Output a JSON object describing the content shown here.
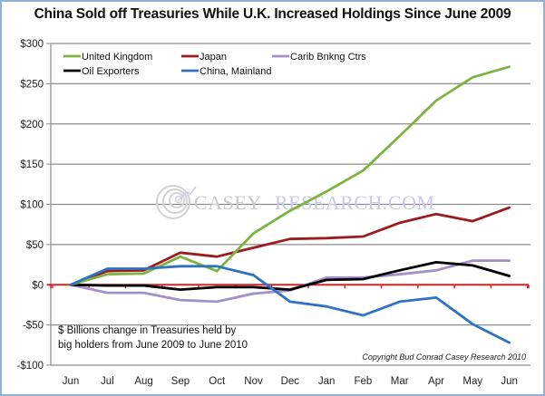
{
  "chart_data": {
    "type": "line",
    "title": "China Sold off Treasuries While U.K. Increased Holdings Since June 2009",
    "xlabel": "",
    "ylabel": "",
    "categories": [
      "Jun",
      "Jul",
      "Aug",
      "Sep",
      "Oct",
      "Nov",
      "Dec",
      "Jan",
      "Feb",
      "Mar",
      "Apr",
      "May",
      "Jun"
    ],
    "y_ticks": [
      300,
      250,
      200,
      150,
      100,
      50,
      0,
      -50,
      -100
    ],
    "y_tick_labels": [
      "$300",
      "$250",
      "$200",
      "$150",
      "$100",
      "$50",
      "$0",
      "-$50",
      "-$100"
    ],
    "ylim": [
      -100,
      300
    ],
    "grid": true,
    "zero_line_color": "#e02020",
    "legend_position": "top-left",
    "series": [
      {
        "name": "United Kingdom",
        "color": "#7cb342",
        "values": [
          0,
          13,
          14,
          35,
          17,
          64,
          92,
          116,
          142,
          185,
          229,
          258,
          271
        ]
      },
      {
        "name": "Japan",
        "color": "#9b1b1f",
        "values": [
          0,
          17,
          18,
          40,
          35,
          46,
          57,
          58,
          60,
          77,
          88,
          79,
          96
        ]
      },
      {
        "name": "Carib Bnkng Ctrs",
        "color": "#a48fc8",
        "values": [
          0,
          -10,
          -10,
          -19,
          -21,
          -11,
          -7,
          9,
          9,
          13,
          18,
          30,
          30
        ]
      },
      {
        "name": "Oil Exporters",
        "color": "#000000",
        "values": [
          0,
          -1,
          -1,
          -6,
          -3,
          -3,
          -6,
          6,
          7,
          18,
          28,
          24,
          11
        ]
      },
      {
        "name": "China, Mainland",
        "color": "#2e72c2",
        "values": [
          0,
          20,
          20,
          23,
          23,
          12,
          -21,
          -27,
          -38,
          -21,
          -16,
          -49,
          -72
        ]
      }
    ],
    "annotations": {
      "note_lines": [
        "$ Billions change in Treasuries held by",
        "big holders from June 2009 to June 2010"
      ],
      "copyright": "Copyright Bud Conrad Casey Research 2010",
      "watermark_left": "CASEY",
      "watermark_right": "RESEARCH.COM"
    }
  }
}
